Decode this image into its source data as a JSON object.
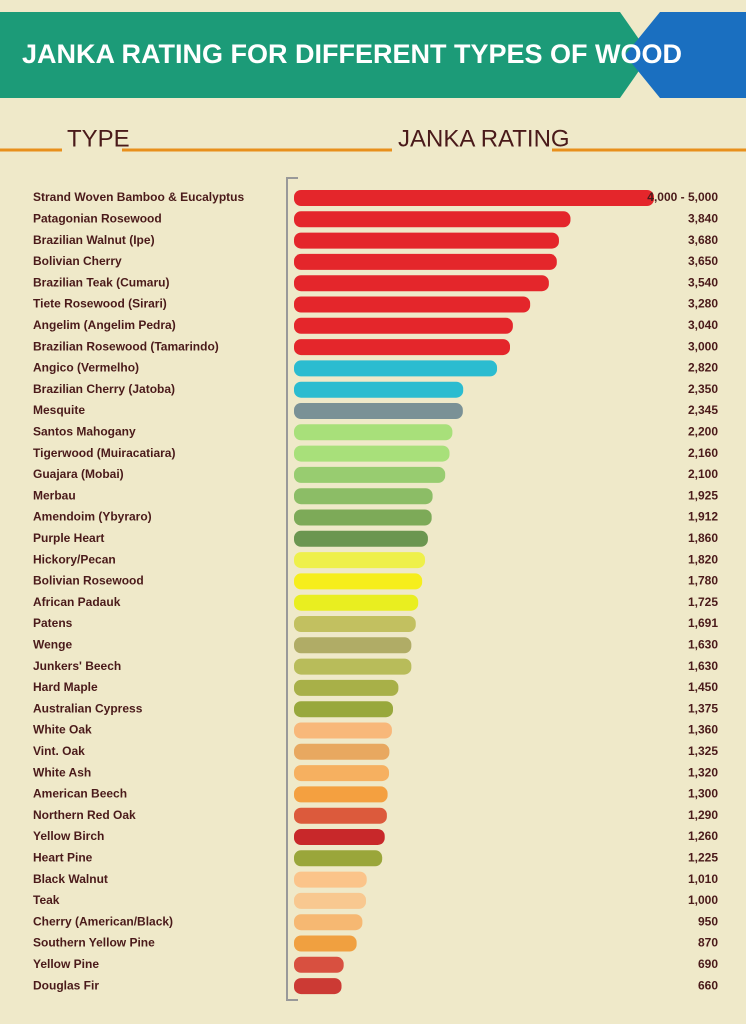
{
  "chart_data": {
    "type": "bar",
    "title": "JANKA RATING FOR DIFFERENT TYPES OF WOOD",
    "category_header": "TYPE",
    "value_header": "JANKA RATING",
    "categories": [
      "Strand Woven Bamboo & Eucalyptus",
      "Patagonian Rosewood",
      "Brazilian Walnut (Ipe)",
      "Bolivian Cherry",
      "Brazilian Teak (Cumaru)",
      "Tiete Rosewood (Sirari)",
      "Angelim (Angelim Pedra)",
      "Brazilian Rosewood (Tamarindo)",
      "Angico (Vermelho)",
      "Brazilian Cherry (Jatoba)",
      "Mesquite",
      "Santos Mahogany",
      "Tigerwood (Muiracatiara)",
      "Guajara (Mobai)",
      "Merbau",
      "Amendoim (Ybyraro)",
      "Purple Heart",
      "Hickory/Pecan",
      "Bolivian Rosewood",
      "African Padauk",
      "Patens",
      "Wenge",
      "Junkers' Beech",
      "Hard Maple",
      "Australian Cypress",
      "White Oak",
      "Vint. Oak",
      "White Ash",
      "American Beech",
      "Northern Red Oak",
      "Yellow Birch",
      "Heart Pine",
      "Black Walnut",
      "Teak",
      "Cherry (American/Black)",
      "Southern Yellow Pine",
      "Yellow Pine",
      "Douglas Fir"
    ],
    "values": [
      5000,
      3840,
      3680,
      3650,
      3540,
      3280,
      3040,
      3000,
      2820,
      2350,
      2345,
      2200,
      2160,
      2100,
      1925,
      1912,
      1860,
      1820,
      1780,
      1725,
      1691,
      1630,
      1630,
      1450,
      1375,
      1360,
      1325,
      1320,
      1300,
      1290,
      1260,
      1225,
      1010,
      1000,
      950,
      870,
      690,
      660
    ],
    "value_labels": [
      "4,000 - 5,000",
      "3,840",
      "3,680",
      "3,650",
      "3,540",
      "3,280",
      "3,040",
      "3,000",
      "2,820",
      "2,350",
      "2,345",
      "2,200",
      "2,160",
      "2,100",
      "1,925",
      "1,912",
      "1,860",
      "1,820",
      "1,780",
      "1,725",
      "1,691",
      "1,630",
      "1,630",
      "1,450",
      "1,375",
      "1,360",
      "1,325",
      "1,320",
      "1,300",
      "1,290",
      "1,260",
      "1,225",
      "1,010",
      "1,000",
      "950",
      "870",
      "690",
      "660"
    ],
    "colors": [
      "#e4262b",
      "#e4262b",
      "#e4262b",
      "#e4262b",
      "#e4262b",
      "#e4262b",
      "#e4262b",
      "#e4262b",
      "#2bbcd0",
      "#2bbcd0",
      "#7a9196",
      "#a8e07a",
      "#a8e07a",
      "#98cc70",
      "#8cbd66",
      "#7daa58",
      "#6b9650",
      "#eef04a",
      "#f6ee1c",
      "#e9ee20",
      "#c2c060",
      "#b0ac66",
      "#b8bc5a",
      "#a8b048",
      "#98a83c",
      "#f8b87a",
      "#e8a860",
      "#f6b060",
      "#f4a040",
      "#dc5a3c",
      "#c8282a",
      "#9aa63a",
      "#fbc48a",
      "#f8c890",
      "#f6b872",
      "#f0a040",
      "#d85040",
      "#cc3a34"
    ]
  }
}
